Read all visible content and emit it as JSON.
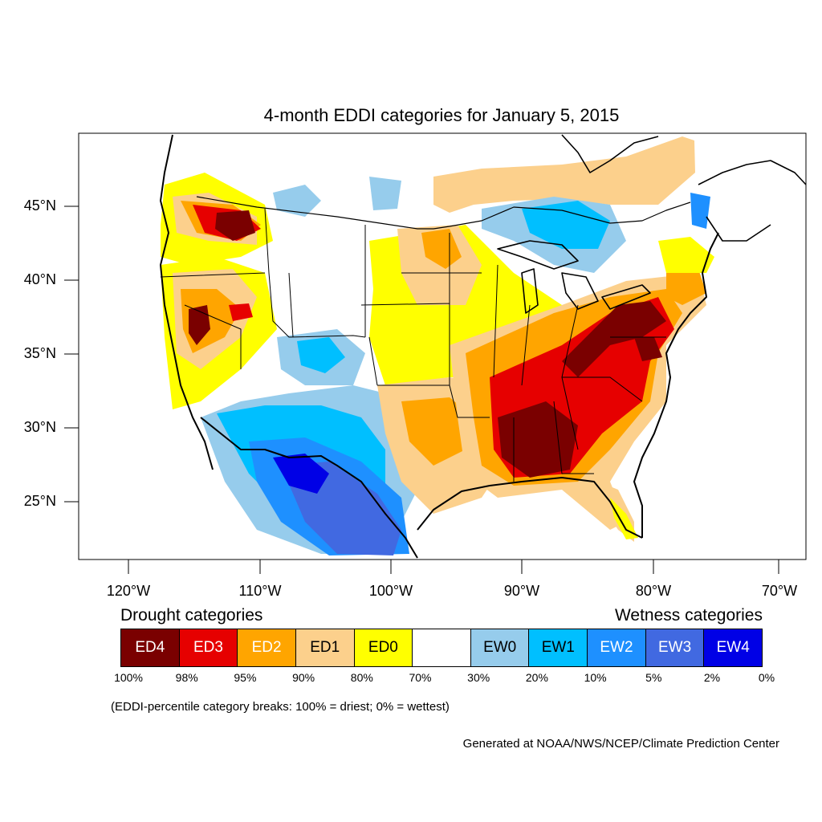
{
  "title": "4-month EDDI categories for January 5, 2015",
  "lat_ticks": [
    "45°N",
    "40°N",
    "35°N",
    "30°N",
    "25°N"
  ],
  "lon_ticks": [
    "120°W",
    "110°W",
    "100°W",
    "90°W",
    "80°W",
    "70°W"
  ],
  "legend": {
    "drought_label": "Drought categories",
    "wetness_label": "Wetness categories",
    "categories": [
      {
        "label": "ED4",
        "color": "#7a0000",
        "text_color": "#ffffff"
      },
      {
        "label": "ED3",
        "color": "#e60000",
        "text_color": "#ffffff"
      },
      {
        "label": "ED2",
        "color": "#ffa500",
        "text_color": "#ffffff"
      },
      {
        "label": "ED1",
        "color": "#fcd08c",
        "text_color": "#000000"
      },
      {
        "label": "ED0",
        "color": "#ffff00",
        "text_color": "#000000"
      },
      {
        "label": "",
        "color": "#ffffff",
        "text_color": "#000000"
      },
      {
        "label": "EW0",
        "color": "#96ccec",
        "text_color": "#000000"
      },
      {
        "label": "EW1",
        "color": "#00bfff",
        "text_color": "#000000"
      },
      {
        "label": "EW2",
        "color": "#1e90ff",
        "text_color": "#ffffff"
      },
      {
        "label": "EW3",
        "color": "#4169e1",
        "text_color": "#ffffff"
      },
      {
        "label": "EW4",
        "color": "#0000e6",
        "text_color": "#ffffff"
      }
    ],
    "percentiles": [
      "100%",
      "98%",
      "95%",
      "90%",
      "80%",
      "70%",
      "30%",
      "20%",
      "10%",
      "5%",
      "2%",
      "0%"
    ]
  },
  "note": "(EDDI-percentile category breaks: 100% = driest; 0% = wettest)",
  "credit": "Generated at NOAA/NWS/NCEP/Climate Prediction Center"
}
